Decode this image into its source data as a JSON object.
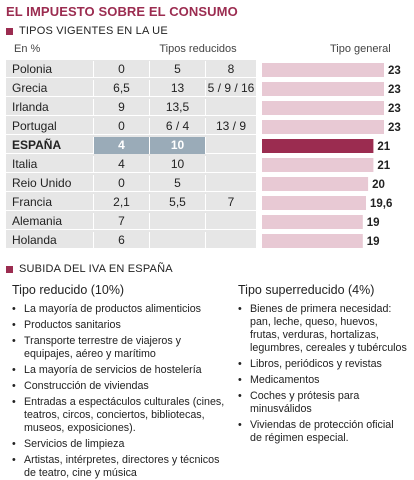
{
  "title": "EL IMPUESTO SOBRE EL CONSUMO",
  "section1": "TIPOS VIGENTES EN LA UE",
  "section2": "SUBIDA DEL IVA EN ESPAÑA",
  "headers": {
    "label": "En %",
    "reduced": "Tipos reducidos",
    "general": "Tipo general"
  },
  "colors": {
    "accent": "#9b2c50",
    "bar": "#e8c9d4",
    "highlight_bar": "#9b2c50",
    "highlight_cell": "#9aabb8",
    "table_bg": "#e6e6e6"
  },
  "chart_data": {
    "type": "bar",
    "categories": [
      "Polonia",
      "Grecia",
      "Irlanda",
      "Portugal",
      "ESPAÑA",
      "Italia",
      "Reio Unido",
      "Francia",
      "Alemania",
      "Holanda"
    ],
    "reduced_rates": [
      [
        "0",
        "5",
        "8"
      ],
      [
        "6,5",
        "13",
        "5 / 9 / 16"
      ],
      [
        "9",
        "13,5",
        ""
      ],
      [
        "0",
        "6 / 4",
        "13 / 9"
      ],
      [
        "4",
        "10",
        ""
      ],
      [
        "4",
        "10",
        ""
      ],
      [
        "0",
        "5",
        ""
      ],
      [
        "2,1",
        "5,5",
        "7"
      ],
      [
        "7",
        "",
        ""
      ],
      [
        "6",
        "",
        ""
      ]
    ],
    "values": [
      23,
      23,
      23,
      23,
      21,
      21,
      20,
      19.6,
      19,
      19
    ],
    "value_labels": [
      "23",
      "23",
      "23",
      "23",
      "21",
      "21",
      "20",
      "19,6",
      "19",
      "19"
    ],
    "highlight": "ESPAÑA",
    "xlim": [
      0,
      23
    ]
  },
  "lists": {
    "reduced": {
      "heading": "Tipo reducido (10%)",
      "items": [
        "La mayoría de productos alimenticios",
        "Productos sanitarios",
        "Transporte terrestre de viajeros y equipajes, aéreo y marítimo",
        "La mayoría de servicios de hostelería",
        "Construcción de viviendas",
        "Entradas a espectáculos culturales (cines, teatros, circos, conciertos, bibliotecas, museos, exposiciones).",
        "Servicios de limpieza",
        "Artistas, intérpretes, directores y técnicos de teatro, cine y música"
      ]
    },
    "super": {
      "heading": "Tipo superreducido (4%)",
      "items": [
        "Bienes de primera necesidad: pan, leche, queso, huevos, frutas, verduras, hortalizas, legumbres, cereales y tubérculos",
        "Libros, periódicos y revistas",
        "Medicamentos",
        "Coches y prótesis para minusválidos",
        "Viviendas de protección oficial de régimen especial."
      ]
    }
  }
}
